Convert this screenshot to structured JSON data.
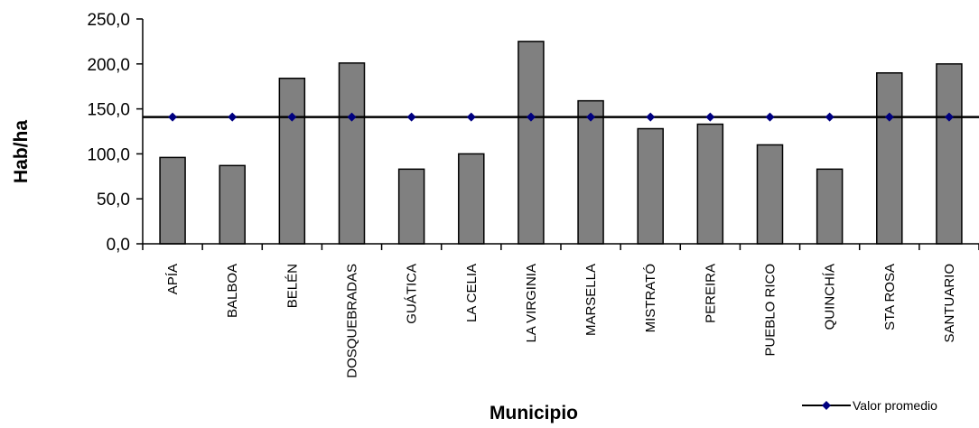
{
  "chart_data": {
    "type": "bar",
    "title": "",
    "xlabel": "Municipio",
    "ylabel": "Hab/ha",
    "ylim": [
      0,
      250
    ],
    "yticks": [
      0,
      50,
      100,
      150,
      200,
      250
    ],
    "ytick_labels": [
      "0,0",
      "50,0",
      "100,0",
      "150,0",
      "200,0",
      "250,0"
    ],
    "categories": [
      "APÍA",
      "BALBOA",
      "BELÉN",
      "DOSQUEBRADAS",
      "GUÁTICA",
      "LA CELIA",
      "LA VIRGINIA",
      "MARSELLA",
      "MISTRATÓ",
      "PEREIRA",
      "PUEBLO RICO",
      "QUINCHÍA",
      "STA ROSA",
      "SANTUARIO"
    ],
    "series": [
      {
        "type": "bar",
        "values": [
          96,
          87,
          184,
          201,
          83,
          100,
          225,
          159,
          128,
          133,
          110,
          83,
          190,
          200
        ],
        "color": "#808080"
      },
      {
        "name": "Valor promedio",
        "type": "line",
        "values": [
          141,
          141,
          141,
          141,
          141,
          141,
          141,
          141,
          141,
          141,
          141,
          141,
          141,
          141
        ],
        "color": "#000000",
        "marker_color": "#000080"
      }
    ],
    "legend": {
      "position": "bottom-right"
    },
    "grid": false
  }
}
